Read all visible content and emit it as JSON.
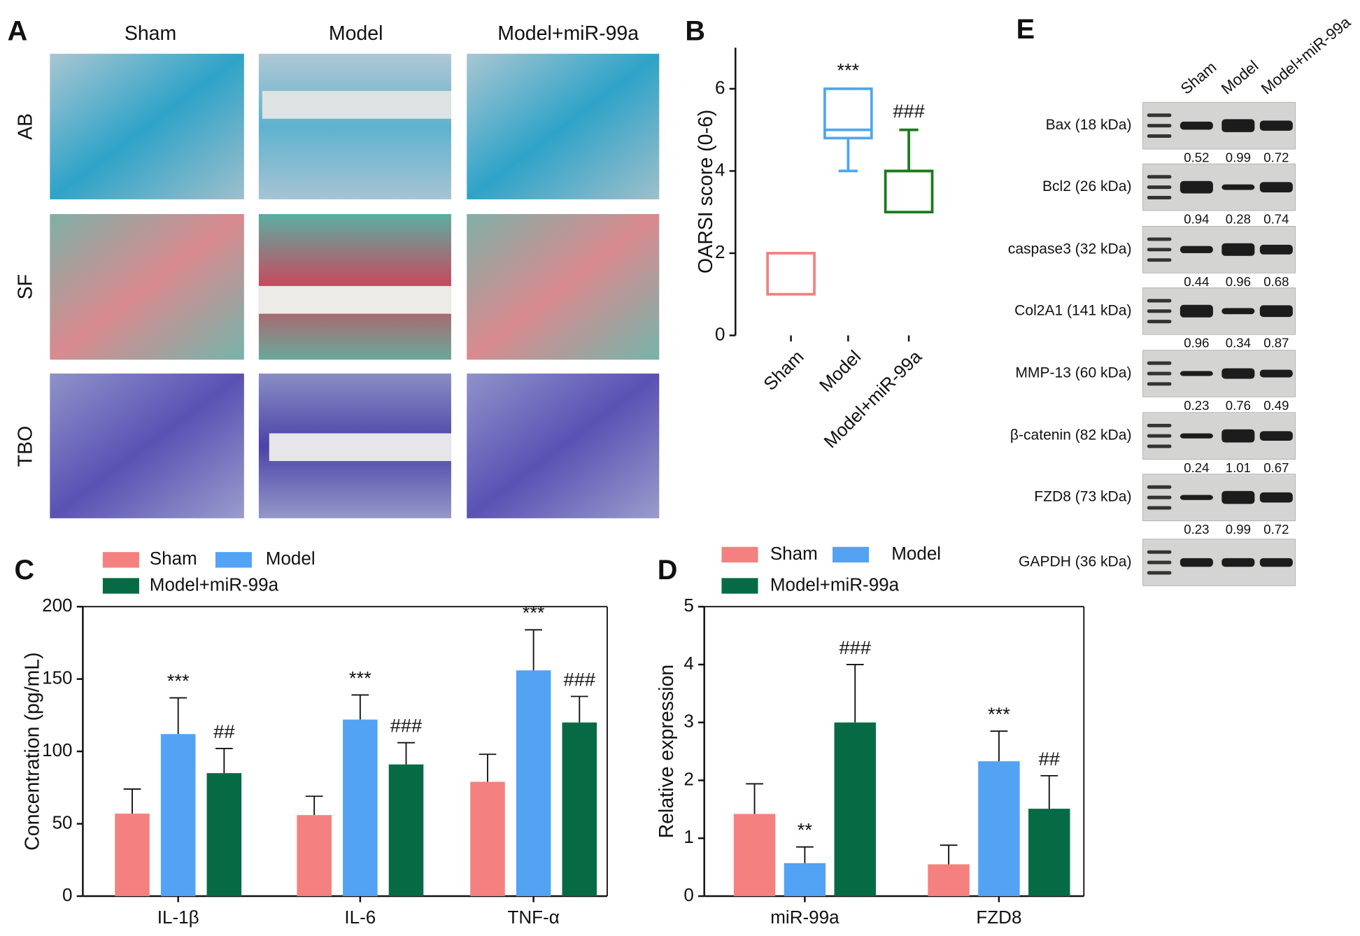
{
  "panel_labels": [
    "A",
    "B",
    "C",
    "D",
    "E"
  ],
  "histology": {
    "columns": [
      "Sham",
      "Model",
      "Model+miR-99a"
    ],
    "rows": [
      "AB",
      "SF",
      "TBO"
    ]
  },
  "western_blot": {
    "columns": [
      "Sham",
      "Model",
      "Model+miR-99a"
    ],
    "rows": [
      {
        "label": "Bax (18 kDa)",
        "values": [
          0.52,
          0.99,
          0.72
        ]
      },
      {
        "label": "Bcl2 (26 kDa)",
        "values": [
          0.94,
          0.28,
          0.74
        ]
      },
      {
        "label": "caspase3 (32 kDa)",
        "values": [
          0.44,
          0.96,
          0.68
        ]
      },
      {
        "label": "Col2A1 (141 kDa)",
        "values": [
          0.96,
          0.34,
          0.87
        ]
      },
      {
        "label": "MMP-13 (60 kDa)",
        "values": [
          0.23,
          0.76,
          0.49
        ]
      },
      {
        "label": "β-catenin (82 kDa)",
        "values": [
          0.24,
          1.01,
          0.67
        ]
      },
      {
        "label": "FZD8 (73 kDa)",
        "values": [
          0.23,
          0.99,
          0.72
        ]
      },
      {
        "label": "GAPDH (36 kDa)"
      }
    ]
  },
  "chart_data": [
    {
      "type": "box",
      "ylabel": "OARSI score (0-6)",
      "categories": [
        "Sham",
        "Model",
        "Model+miR-99a"
      ],
      "boxes": [
        {
          "min": 1,
          "q1": 1,
          "median": 1,
          "q3": 2,
          "max": 2,
          "color": "#f08080"
        },
        {
          "min": 4,
          "q1": 4.8,
          "median": 5,
          "q3": 6,
          "max": 6,
          "color": "#4da6f0"
        },
        {
          "min": 3,
          "q1": 3,
          "median": 4,
          "q3": 4,
          "max": 5,
          "color": "#1a7a1a"
        }
      ],
      "annotations": [
        null,
        "***",
        "###"
      ],
      "ylim": [
        0,
        7
      ],
      "yticks": [
        0,
        2,
        4,
        6
      ]
    },
    {
      "type": "bar",
      "ylabel": "Concentration (pg/mL)",
      "categories": [
        "IL-1β",
        "IL-6",
        "TNF-α"
      ],
      "series": [
        {
          "name": "Sham",
          "color": "#f4817f",
          "values": [
            57,
            56,
            79
          ],
          "errors": [
            17,
            13,
            19
          ],
          "annotations": [
            null,
            null,
            null
          ]
        },
        {
          "name": "Model",
          "color": "#53a3f5",
          "values": [
            112,
            122,
            156
          ],
          "errors": [
            25,
            17,
            28
          ],
          "annotations": [
            "***",
            "***",
            "***"
          ]
        },
        {
          "name": "Model+miR-99a",
          "color": "#066b45",
          "values": [
            85,
            91,
            120
          ],
          "errors": [
            17,
            15,
            18
          ],
          "annotations": [
            "##",
            "###",
            "###"
          ]
        }
      ],
      "ylim": [
        0,
        200
      ],
      "yticks": [
        0,
        50,
        100,
        150,
        200
      ]
    },
    {
      "type": "bar",
      "ylabel": "Relative expression",
      "categories": [
        "miR-99a",
        "FZD8"
      ],
      "series": [
        {
          "name": "Sham",
          "color": "#f4817f",
          "values": [
            1.42,
            0.55
          ],
          "errors": [
            0.52,
            0.33
          ],
          "annotations": [
            null,
            null
          ]
        },
        {
          "name": "Model",
          "color": "#53a3f5",
          "values": [
            0.57,
            2.33
          ],
          "errors": [
            0.28,
            0.52
          ],
          "annotations": [
            "**",
            "***"
          ]
        },
        {
          "name": "Model+miR-99a",
          "color": "#066b45",
          "values": [
            3.0,
            1.51
          ],
          "errors": [
            1.0,
            0.57
          ],
          "annotations": [
            "###",
            "##"
          ]
        }
      ],
      "ylim": [
        0,
        5
      ],
      "yticks": [
        0,
        1,
        2,
        3,
        4,
        5
      ]
    }
  ]
}
